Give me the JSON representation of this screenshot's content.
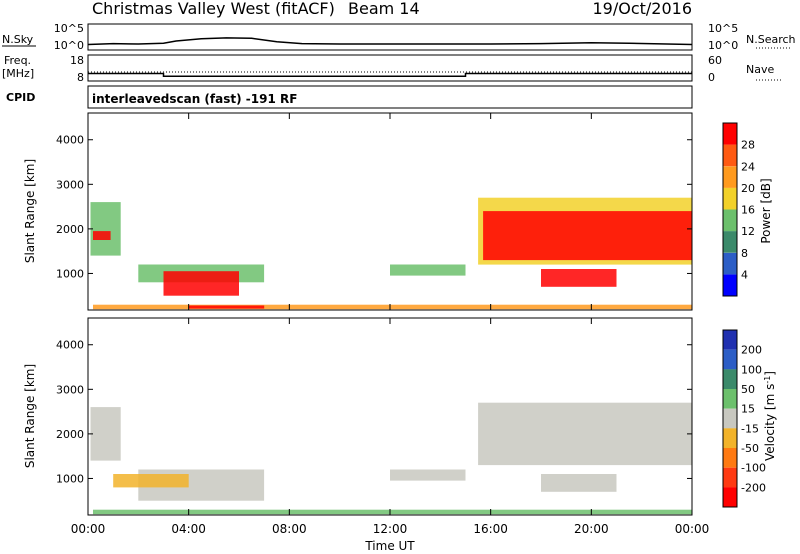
{
  "header": {
    "radar": "Christmas Valley West (fitACF)",
    "beam": "Beam 14",
    "date": "19/Oct/2016"
  },
  "nsky_panel": {
    "left_label": "N.Sky",
    "right_label": "N.Search",
    "left_ticks": [
      "10^5",
      "10^0"
    ],
    "right_ticks": [
      "10^5",
      "10^0"
    ],
    "nsky_series": [
      {
        "t": 0.0,
        "v": 0.8
      },
      {
        "t": 1.0,
        "v": 1.0
      },
      {
        "t": 2.0,
        "v": 0.9
      },
      {
        "t": 3.0,
        "v": 1.1
      },
      {
        "t": 3.5,
        "v": 1.6
      },
      {
        "t": 4.5,
        "v": 2.1
      },
      {
        "t": 5.5,
        "v": 2.3
      },
      {
        "t": 6.5,
        "v": 2.2
      },
      {
        "t": 7.5,
        "v": 1.4
      },
      {
        "t": 8.5,
        "v": 1.0
      },
      {
        "t": 10.0,
        "v": 0.9
      },
      {
        "t": 12.0,
        "v": 0.9
      },
      {
        "t": 14.0,
        "v": 0.9
      },
      {
        "t": 16.0,
        "v": 0.9
      },
      {
        "t": 18.0,
        "v": 1.0
      },
      {
        "t": 20.0,
        "v": 1.2
      },
      {
        "t": 21.5,
        "v": 1.1
      },
      {
        "t": 23.0,
        "v": 0.9
      },
      {
        "t": 24.0,
        "v": 0.8
      }
    ]
  },
  "freq_panel": {
    "left_label": "Freq.",
    "left_unit": "[MHz]",
    "right_label": "Nave",
    "left_ticks": [
      "18",
      "8"
    ],
    "right_ticks": [
      "60",
      "0"
    ],
    "freq_steps": [
      {
        "t": 0.0,
        "v": 10.9
      },
      {
        "t": 3.0,
        "v": 10.9
      },
      {
        "t": 3.0,
        "v": 9.8
      },
      {
        "t": 15.0,
        "v": 9.8
      },
      {
        "t": 15.0,
        "v": 10.9
      },
      {
        "t": 24.0,
        "v": 10.9
      }
    ]
  },
  "cpid": {
    "label": "CPID",
    "text": "interleavedscan (fast) -191 RF"
  },
  "chart_data": [
    {
      "type": "heatmap",
      "ylabel": "Slant Range [km]",
      "y_ticks": [
        "1000",
        "2000",
        "3000",
        "4000"
      ],
      "ylim": [
        180,
        4600
      ],
      "xlim": [
        0,
        24
      ],
      "colorbar": {
        "label": "Power [dB]",
        "ticks": [
          "4",
          "8",
          "12",
          "16",
          "20",
          "24",
          "28"
        ],
        "colors": [
          "#0000ff",
          "#2c5ec6",
          "#3b8a6a",
          "#6cc06c",
          "#f2d12a",
          "#ff9a1e",
          "#ff5a12",
          "#ff0000"
        ]
      },
      "regions": [
        {
          "t0": 0.1,
          "t1": 1.3,
          "r0": 1400,
          "r1": 2600,
          "level": 3
        },
        {
          "t0": 0.2,
          "t1": 0.9,
          "r0": 1750,
          "r1": 1950,
          "level": 7
        },
        {
          "t0": 2.0,
          "t1": 7.0,
          "r0": 800,
          "r1": 1200,
          "level": 3
        },
        {
          "t0": 3.0,
          "t1": 6.0,
          "r0": 500,
          "r1": 1050,
          "level": 7
        },
        {
          "t0": 0.2,
          "t1": 24.0,
          "r0": 200,
          "r1": 300,
          "level": 5
        },
        {
          "t0": 4.0,
          "t1": 7.0,
          "r0": 210,
          "r1": 280,
          "level": 7
        },
        {
          "t0": 12.0,
          "t1": 15.0,
          "r0": 950,
          "r1": 1200,
          "level": 3
        },
        {
          "t0": 15.5,
          "t1": 24.0,
          "r0": 1200,
          "r1": 2700,
          "level": 4
        },
        {
          "t0": 15.7,
          "t1": 24.0,
          "r0": 1300,
          "r1": 2400,
          "level": 7
        },
        {
          "t0": 18.0,
          "t1": 21.0,
          "r0": 700,
          "r1": 1100,
          "level": 7
        }
      ]
    },
    {
      "type": "heatmap",
      "ylabel": "Slant Range [km]",
      "y_ticks": [
        "1000",
        "2000",
        "3000",
        "4000"
      ],
      "ylim": [
        180,
        4600
      ],
      "xlim": [
        0,
        24
      ],
      "xlabel": "Time UT",
      "x_ticks": [
        "00:00",
        "04:00",
        "08:00",
        "12:00",
        "16:00",
        "20:00",
        "00:00"
      ],
      "colorbar": {
        "label": "Velocity [m s^-1]",
        "ticks": [
          "200",
          "100",
          "50",
          "15",
          "-15",
          "-50",
          "-100",
          "-200"
        ],
        "colors": [
          "#2030b0",
          "#2c5ec6",
          "#3b8a6a",
          "#6cc06c",
          "#c8c8c0",
          "#f2b32a",
          "#ff7a12",
          "#ff3a12",
          "#ff0000"
        ]
      },
      "regions": [
        {
          "t0": 0.1,
          "t1": 1.3,
          "r0": 1400,
          "r1": 2600,
          "level": 4
        },
        {
          "t0": 2.0,
          "t1": 7.0,
          "r0": 500,
          "r1": 1200,
          "level": 4
        },
        {
          "t0": 1.0,
          "t1": 4.0,
          "r0": 800,
          "r1": 1100,
          "level": 5
        },
        {
          "t0": 0.2,
          "t1": 24.0,
          "r0": 200,
          "r1": 300,
          "level": 3
        },
        {
          "t0": 12.0,
          "t1": 15.0,
          "r0": 950,
          "r1": 1200,
          "level": 4
        },
        {
          "t0": 15.5,
          "t1": 24.0,
          "r0": 1300,
          "r1": 2700,
          "level": 4
        },
        {
          "t0": 18.0,
          "t1": 21.0,
          "r0": 700,
          "r1": 1100,
          "level": 4
        }
      ]
    }
  ]
}
